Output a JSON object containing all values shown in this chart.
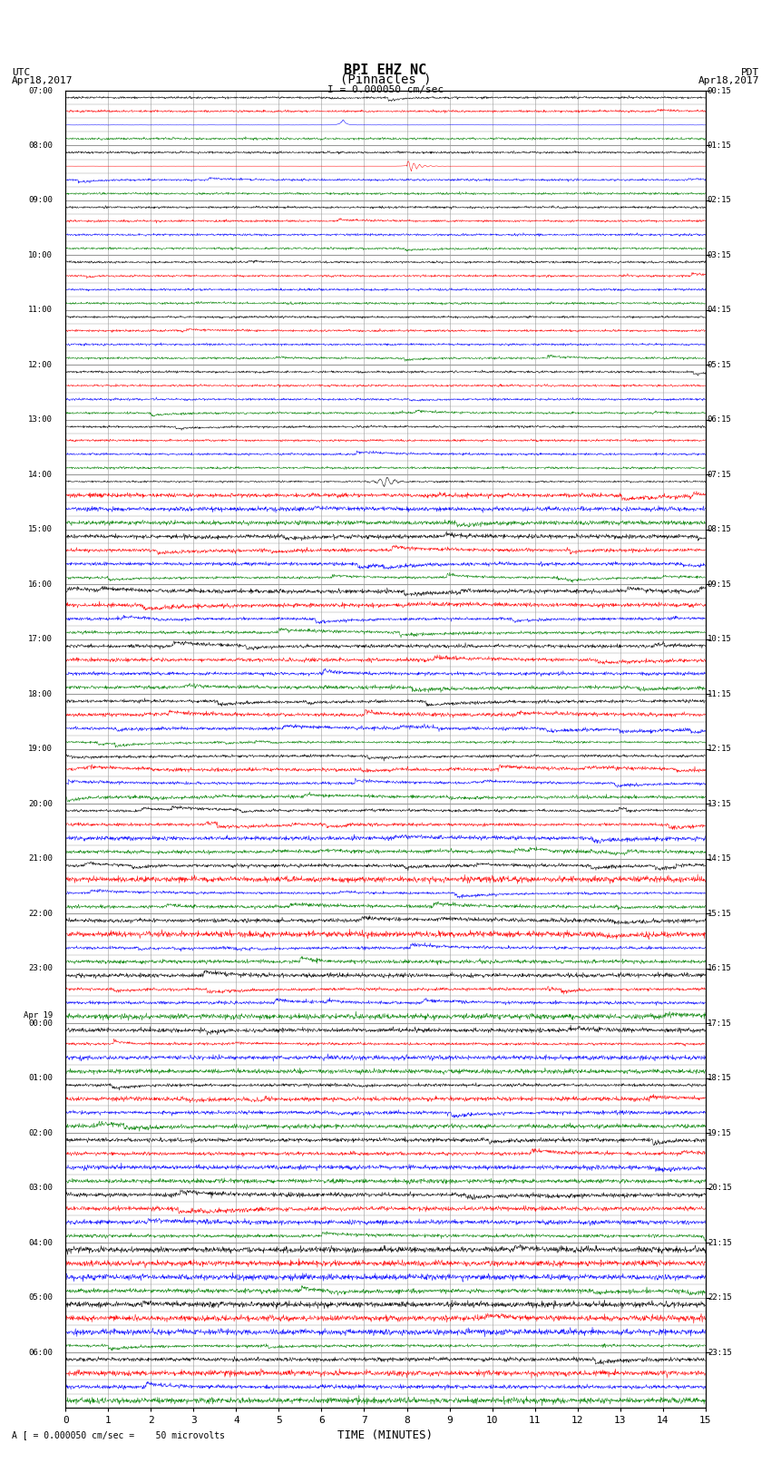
{
  "title_line1": "BPI EHZ NC",
  "title_line2": "(Pinnacles )",
  "scale_label": "I = 0.000050 cm/sec",
  "footer_label": "A [ = 0.000050 cm/sec =    50 microvolts",
  "left_label_top": "UTC",
  "left_label_date": "Apr18,2017",
  "right_label_top": "PDT",
  "right_label_date": "Apr18,2017",
  "xlabel": "TIME (MINUTES)",
  "left_times": [
    "07:00",
    "08:00",
    "09:00",
    "10:00",
    "11:00",
    "12:00",
    "13:00",
    "14:00",
    "15:00",
    "16:00",
    "17:00",
    "18:00",
    "19:00",
    "20:00",
    "21:00",
    "22:00",
    "23:00",
    "Apr 19\n00:00",
    "01:00",
    "02:00",
    "03:00",
    "04:00",
    "05:00",
    "06:00"
  ],
  "right_times": [
    "00:15",
    "01:15",
    "02:15",
    "03:15",
    "04:15",
    "05:15",
    "06:15",
    "07:15",
    "08:15",
    "09:15",
    "10:15",
    "11:15",
    "12:15",
    "13:15",
    "14:15",
    "15:15",
    "16:15",
    "17:15",
    "18:15",
    "19:15",
    "20:15",
    "21:15",
    "22:15",
    "23:15"
  ],
  "n_rows": 24,
  "traces_per_row": 4,
  "colors": [
    "black",
    "red",
    "blue",
    "green"
  ],
  "bg_color": "#ffffff",
  "grid_color": "#999999",
  "minutes_per_row": 15,
  "x_ticks": [
    0,
    1,
    2,
    3,
    4,
    5,
    6,
    7,
    8,
    9,
    10,
    11,
    12,
    13,
    14,
    15
  ],
  "fig_width": 8.5,
  "fig_height": 16.13,
  "dpi": 100
}
